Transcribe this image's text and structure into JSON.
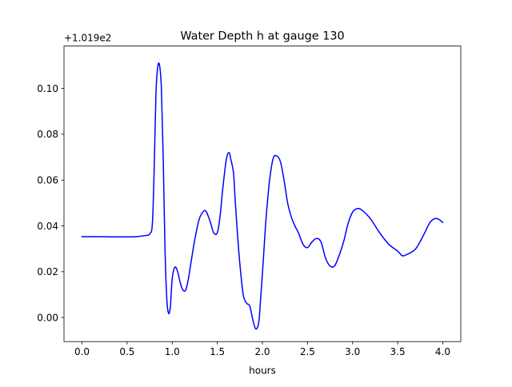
{
  "chart_data": {
    "type": "line",
    "title": "Water Depth h at gauge 130",
    "xlabel": "hours",
    "ylabel": "",
    "y_offset_label": "+1.019e2",
    "xlim": [
      -0.2,
      4.2
    ],
    "ylim": [
      -0.0105,
      0.1185
    ],
    "x_ticks": [
      0.0,
      0.5,
      1.0,
      1.5,
      2.0,
      2.5,
      3.0,
      3.5,
      4.0
    ],
    "x_tick_labels": [
      "0.0",
      "0.5",
      "1.0",
      "1.5",
      "2.0",
      "2.5",
      "3.0",
      "3.5",
      "4.0"
    ],
    "y_ticks": [
      0.0,
      0.02,
      0.04,
      0.06,
      0.08,
      0.1
    ],
    "y_tick_labels": [
      "0.00",
      "0.02",
      "0.04",
      "0.06",
      "0.08",
      "0.10"
    ],
    "grid": false,
    "series": [
      {
        "color": "#0000ff",
        "x": [
          0.0,
          0.2,
          0.4,
          0.6,
          0.7,
          0.75,
          0.78,
          0.8,
          0.82,
          0.84,
          0.86,
          0.88,
          0.9,
          0.92,
          0.94,
          0.96,
          0.98,
          1.0,
          1.03,
          1.06,
          1.09,
          1.12,
          1.15,
          1.18,
          1.2,
          1.25,
          1.3,
          1.35,
          1.38,
          1.42,
          1.46,
          1.5,
          1.53,
          1.56,
          1.6,
          1.63,
          1.65,
          1.68,
          1.7,
          1.74,
          1.78,
          1.8,
          1.83,
          1.86,
          1.9,
          1.93,
          1.96,
          1.98,
          2.01,
          2.04,
          2.08,
          2.12,
          2.16,
          2.2,
          2.24,
          2.28,
          2.32,
          2.36,
          2.4,
          2.45,
          2.5,
          2.55,
          2.6,
          2.65,
          2.7,
          2.75,
          2.8,
          2.85,
          2.9,
          2.95,
          3.0,
          3.05,
          3.1,
          3.2,
          3.3,
          3.4,
          3.5,
          3.55,
          3.6,
          3.7,
          3.8,
          3.85,
          3.9,
          3.95,
          4.0
        ],
        "y": [
          0.0353,
          0.0353,
          0.0352,
          0.0353,
          0.0358,
          0.0365,
          0.041,
          0.065,
          0.098,
          0.1095,
          0.11,
          0.1,
          0.07,
          0.03,
          0.008,
          0.0018,
          0.005,
          0.017,
          0.022,
          0.02,
          0.015,
          0.012,
          0.012,
          0.017,
          0.022,
          0.034,
          0.043,
          0.0465,
          0.046,
          0.042,
          0.037,
          0.037,
          0.044,
          0.056,
          0.069,
          0.072,
          0.069,
          0.063,
          0.05,
          0.028,
          0.012,
          0.008,
          0.006,
          0.005,
          -0.002,
          -0.005,
          -0.002,
          0.008,
          0.025,
          0.043,
          0.06,
          0.0695,
          0.0705,
          0.068,
          0.06,
          0.05,
          0.044,
          0.04,
          0.037,
          0.032,
          0.0305,
          0.033,
          0.0345,
          0.033,
          0.026,
          0.0225,
          0.0225,
          0.027,
          0.033,
          0.041,
          0.046,
          0.0475,
          0.047,
          0.043,
          0.037,
          0.032,
          0.029,
          0.027,
          0.0275,
          0.03,
          0.037,
          0.041,
          0.043,
          0.043,
          0.0415
        ]
      }
    ]
  }
}
